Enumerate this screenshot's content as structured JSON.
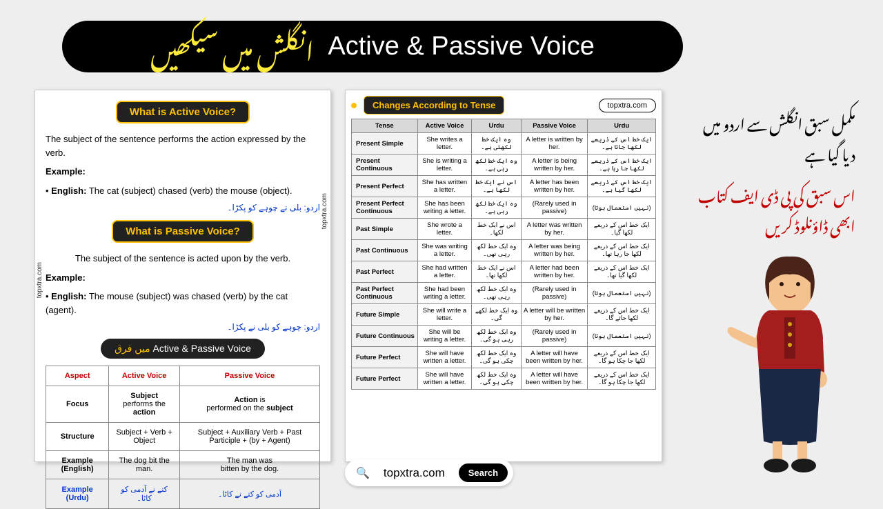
{
  "header": {
    "urdu": "انگلش میں سیکھیں",
    "english": "Active & Passive Voice"
  },
  "panelLeft": {
    "title1": "What is Active Voice?",
    "desc1": "The subject of the sentence performs the action expressed by the verb.",
    "exLabel": "Example:",
    "engLabel": "English:",
    "ex1": " The cat (subject) chased (verb) the mouse (object).",
    "urdu1": "اردو: بلی نے چوہے کو پکڑا۔",
    "title2": "What is Passive Voice?",
    "desc2": "The subject of the sentence is acted upon by the verb.",
    "ex2": " The mouse (subject) was chased (verb) by the cat (agent).",
    "urdu2": "اردو: چوہے کو بلی نے پکڑا۔",
    "diffLabel": "Active & Passive Voice",
    "diffUrdu": "میں فرق",
    "compTable": {
      "headers": [
        "Aspect",
        "Active Voice",
        "Passive Voice"
      ],
      "rows": [
        {
          "aspect": "Focus",
          "active": "<b>Subject</b><br>performs the <b>action</b>",
          "passive": "<b>Action</b> is<br>performed on the <b>subject</b>"
        },
        {
          "aspect": "Structure",
          "active": "Subject + Verb + Object",
          "passive": "Subject + Auxiliary Verb + Past Participle + (by + Agent)"
        },
        {
          "aspect": "Example (English)",
          "active": "The dog bit the man.",
          "passive": "The man was<br>bitten by the dog."
        },
        {
          "aspect": "Example (Urdu)",
          "active": "کتے نے آدمی کو کاٹا۔",
          "passive": "آدمی کو کتے نے کاٹا۔",
          "urdu": true
        }
      ]
    }
  },
  "panelRight": {
    "title": "Changes According to Tense",
    "badge": "topxtra.com",
    "headers": [
      "Tense",
      "Active Voice",
      "Urdu",
      "Passive Voice",
      "Urdu"
    ],
    "rows": [
      [
        "Present Simple",
        "She writes a letter.",
        "وہ ایک خط لکھتی ہے۔",
        "A letter is written by her.",
        "ایک خط اس کے ذریعے لکھا جاتا ہے۔"
      ],
      [
        "Present Continuous",
        "She is writing a letter.",
        "وہ ایک خط لکھ رہی ہے۔",
        "A letter is being written by her.",
        "ایک خط اس کے ذریعے لکھا جا رہا ہے۔"
      ],
      [
        "Present Perfect",
        "She has written a letter.",
        "اس نے ایک خط لکھا ہے۔",
        "A letter has been written by her.",
        "ایک خط اس کے ذریعے لکھا گیا ہے۔"
      ],
      [
        "Present Perfect Continuous",
        "She has been writing a letter.",
        "وہ ایک خط لکھ رہی ہے۔",
        "(Rarely used in passive)",
        "(نہیں استعمال ہوتا)"
      ],
      [
        "Past Simple",
        "She wrote a letter.",
        "اس نے ایک خط لکھا۔",
        "A letter was written by her.",
        "ایک خط اس کے ذریعے لکھا گیا۔"
      ],
      [
        "Past Continuous",
        "She was writing a letter.",
        "وہ ایک خط لکھ رہی تھی۔",
        "A letter was being written by her.",
        "ایک خط اس کے ذریعے لکھا جا رہا تھا۔"
      ],
      [
        "Past Perfect",
        "She had written a letter.",
        "اس نے ایک خط لکھا تھا۔",
        "A letter had been written by her.",
        "ایک خط اس کے ذریعے لکھا گیا تھا۔"
      ],
      [
        "Past Perfect Continuous",
        "She had been writing a letter.",
        "وہ ایک خط لکھ رہی تھی۔",
        "(Rarely used in passive)",
        "(نہیں استعمال ہوتا)"
      ],
      [
        "Future Simple",
        "She will write a letter.",
        "وہ ایک خط لکھے گی۔",
        "A letter will be written by her.",
        "ایک خط اس کے ذریعے لکھا جائے گا۔"
      ],
      [
        "Future Continuous",
        "She will be writing a letter.",
        "وہ ایک خط لکھ رہی ہو گی۔",
        "(Rarely used in passive)",
        "(نہیں استعمال ہوتا)"
      ],
      [
        "Future Perfect",
        "She will have written a letter.",
        "وہ ایک خط لکھ چکی ہو گی۔",
        "A letter will have been written by her.",
        "ایک خط اس کے ذریعے لکھا جا چکا ہو گا۔"
      ],
      [
        "Future Perfect",
        "She will have written a letter.",
        "وہ ایک خط لکھ چکی ہو گی۔",
        "A letter will have been written by her.",
        "ایک خط اس کے ذریعے لکھا جا چکا ہو گا۔"
      ]
    ]
  },
  "side": {
    "line1": "مکمل سبق انگلش سے اردو میں دیا گیا ہے",
    "line2": "اس سبق کی پی ڈی ایف کتاب ابھی ڈاؤنلوڈ کریں"
  },
  "search": {
    "text": "topxtra.com",
    "btn": "Search"
  },
  "watermark": "topxtra.com"
}
